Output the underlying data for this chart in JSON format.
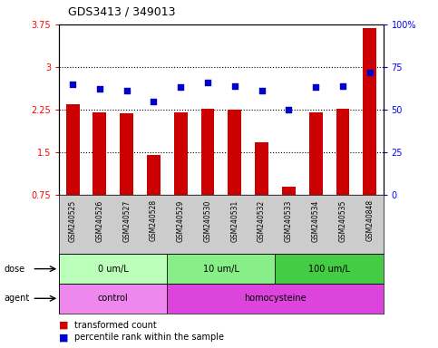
{
  "title": "GDS3413 / 349013",
  "samples": [
    "GSM240525",
    "GSM240526",
    "GSM240527",
    "GSM240528",
    "GSM240529",
    "GSM240530",
    "GSM240531",
    "GSM240532",
    "GSM240533",
    "GSM240534",
    "GSM240535",
    "GSM240848"
  ],
  "transformed_count": [
    2.35,
    2.2,
    2.18,
    1.45,
    2.2,
    2.27,
    2.25,
    1.67,
    0.9,
    2.2,
    2.27,
    3.68
  ],
  "percentile_rank": [
    65,
    62,
    61,
    55,
    63,
    66,
    64,
    61,
    50,
    63,
    64,
    72
  ],
  "ylim_left": [
    0.75,
    3.75
  ],
  "ylim_right": [
    0,
    100
  ],
  "yticks_left": [
    0.75,
    1.5,
    2.25,
    3.0,
    3.75
  ],
  "yticks_right": [
    0,
    25,
    50,
    75,
    100
  ],
  "ytick_labels_left": [
    "0.75",
    "1.5",
    "2.25",
    "3",
    "3.75"
  ],
  "ytick_labels_right": [
    "0",
    "25",
    "50",
    "75",
    "100%"
  ],
  "hlines": [
    1.5,
    2.25,
    3.0
  ],
  "bar_color": "#cc0000",
  "scatter_color": "#0000cc",
  "dose_groups": [
    {
      "label": "0 um/L",
      "start": 0,
      "end": 3,
      "color": "#bbffbb"
    },
    {
      "label": "10 um/L",
      "start": 4,
      "end": 7,
      "color": "#88ee88"
    },
    {
      "label": "100 um/L",
      "start": 8,
      "end": 11,
      "color": "#44cc44"
    }
  ],
  "agent_groups": [
    {
      "label": "control",
      "start": 0,
      "end": 3,
      "color": "#ee88ee"
    },
    {
      "label": "homocysteine",
      "start": 4,
      "end": 11,
      "color": "#dd44dd"
    }
  ],
  "legend_bar_label": "transformed count",
  "legend_scatter_label": "percentile rank within the sample",
  "dose_label": "dose",
  "agent_label": "agent",
  "bg_color": "#ffffff",
  "sample_bg": "#cccccc",
  "bar_width": 0.5
}
